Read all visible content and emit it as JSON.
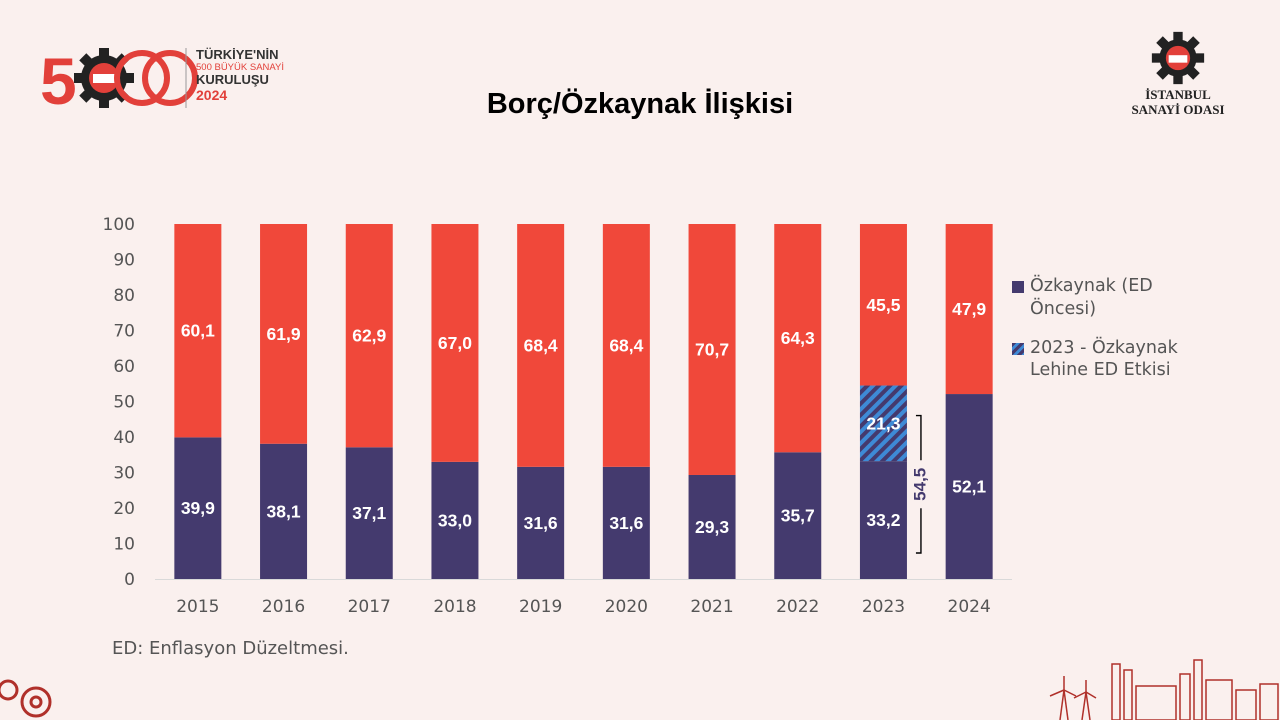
{
  "header": {
    "logo_left": {
      "line1": "TÜRKİYE'NİN",
      "line2": "500 BÜYÜK SANAYİ",
      "line3": "KURULUŞU",
      "year": "2024",
      "emblem": "500 İSO gear emblem"
    },
    "logo_right": {
      "line1": "İSTANBUL",
      "line2": "SANAYİ ODASI",
      "emblem": "İSO gear emblem"
    },
    "title": "Borç/Özkaynak İlişkisi"
  },
  "chart_data": {
    "type": "bar",
    "stacked": true,
    "title": "Borç/Özkaynak İlişkisi",
    "categories": [
      "2015",
      "2016",
      "2017",
      "2018",
      "2019",
      "2020",
      "2021",
      "2022",
      "2023",
      "2024"
    ],
    "series": [
      {
        "name": "Özkaynak (ED Öncesi)",
        "values": [
          39.9,
          38.1,
          37.1,
          33.0,
          31.6,
          31.6,
          29.3,
          35.7,
          33.2,
          52.1
        ],
        "labels": [
          "39,9",
          "38,1",
          "37,1",
          "33,0",
          "31,6",
          "31,6",
          "29,3",
          "35,7",
          "33,2",
          "52,1"
        ]
      },
      {
        "name": "2023 - Özkaynak Lehine ED Etkisi",
        "values": [
          0,
          0,
          0,
          0,
          0,
          0,
          0,
          0,
          21.3,
          0
        ],
        "labels": [
          "",
          "",
          "",
          "",
          "",
          "",
          "",
          "",
          "21,3",
          ""
        ]
      },
      {
        "name": "",
        "values": [
          60.1,
          61.9,
          62.9,
          67.0,
          68.4,
          68.4,
          70.7,
          64.3,
          45.5,
          47.9
        ],
        "labels": [
          "60,1",
          "61,9",
          "62,9",
          "67,0",
          "68,4",
          "68,4",
          "70,7",
          "64,3",
          "45,5",
          "47,9"
        ]
      }
    ],
    "annotation": {
      "category": "2023",
      "from": 0,
      "to": 54.5,
      "label": "54,5"
    },
    "ylim": [
      0,
      100
    ],
    "yticks": [
      0,
      10,
      20,
      30,
      40,
      50,
      60,
      70,
      80,
      90,
      100
    ],
    "grid": false,
    "legend_position": "right",
    "colors": {
      "equity": "#443a6e",
      "effect_stripe_a": "#3e8ad6",
      "effect_stripe_b": "#443a6e",
      "debt": "#f0483a"
    }
  },
  "legend": {
    "items": [
      {
        "label": "Özkaynak (ED Öncesi)"
      },
      {
        "label": "2023 - Özkaynak Lehine ED Etkisi"
      }
    ]
  },
  "footnote": "ED: Enflasyon Düzeltmesi."
}
